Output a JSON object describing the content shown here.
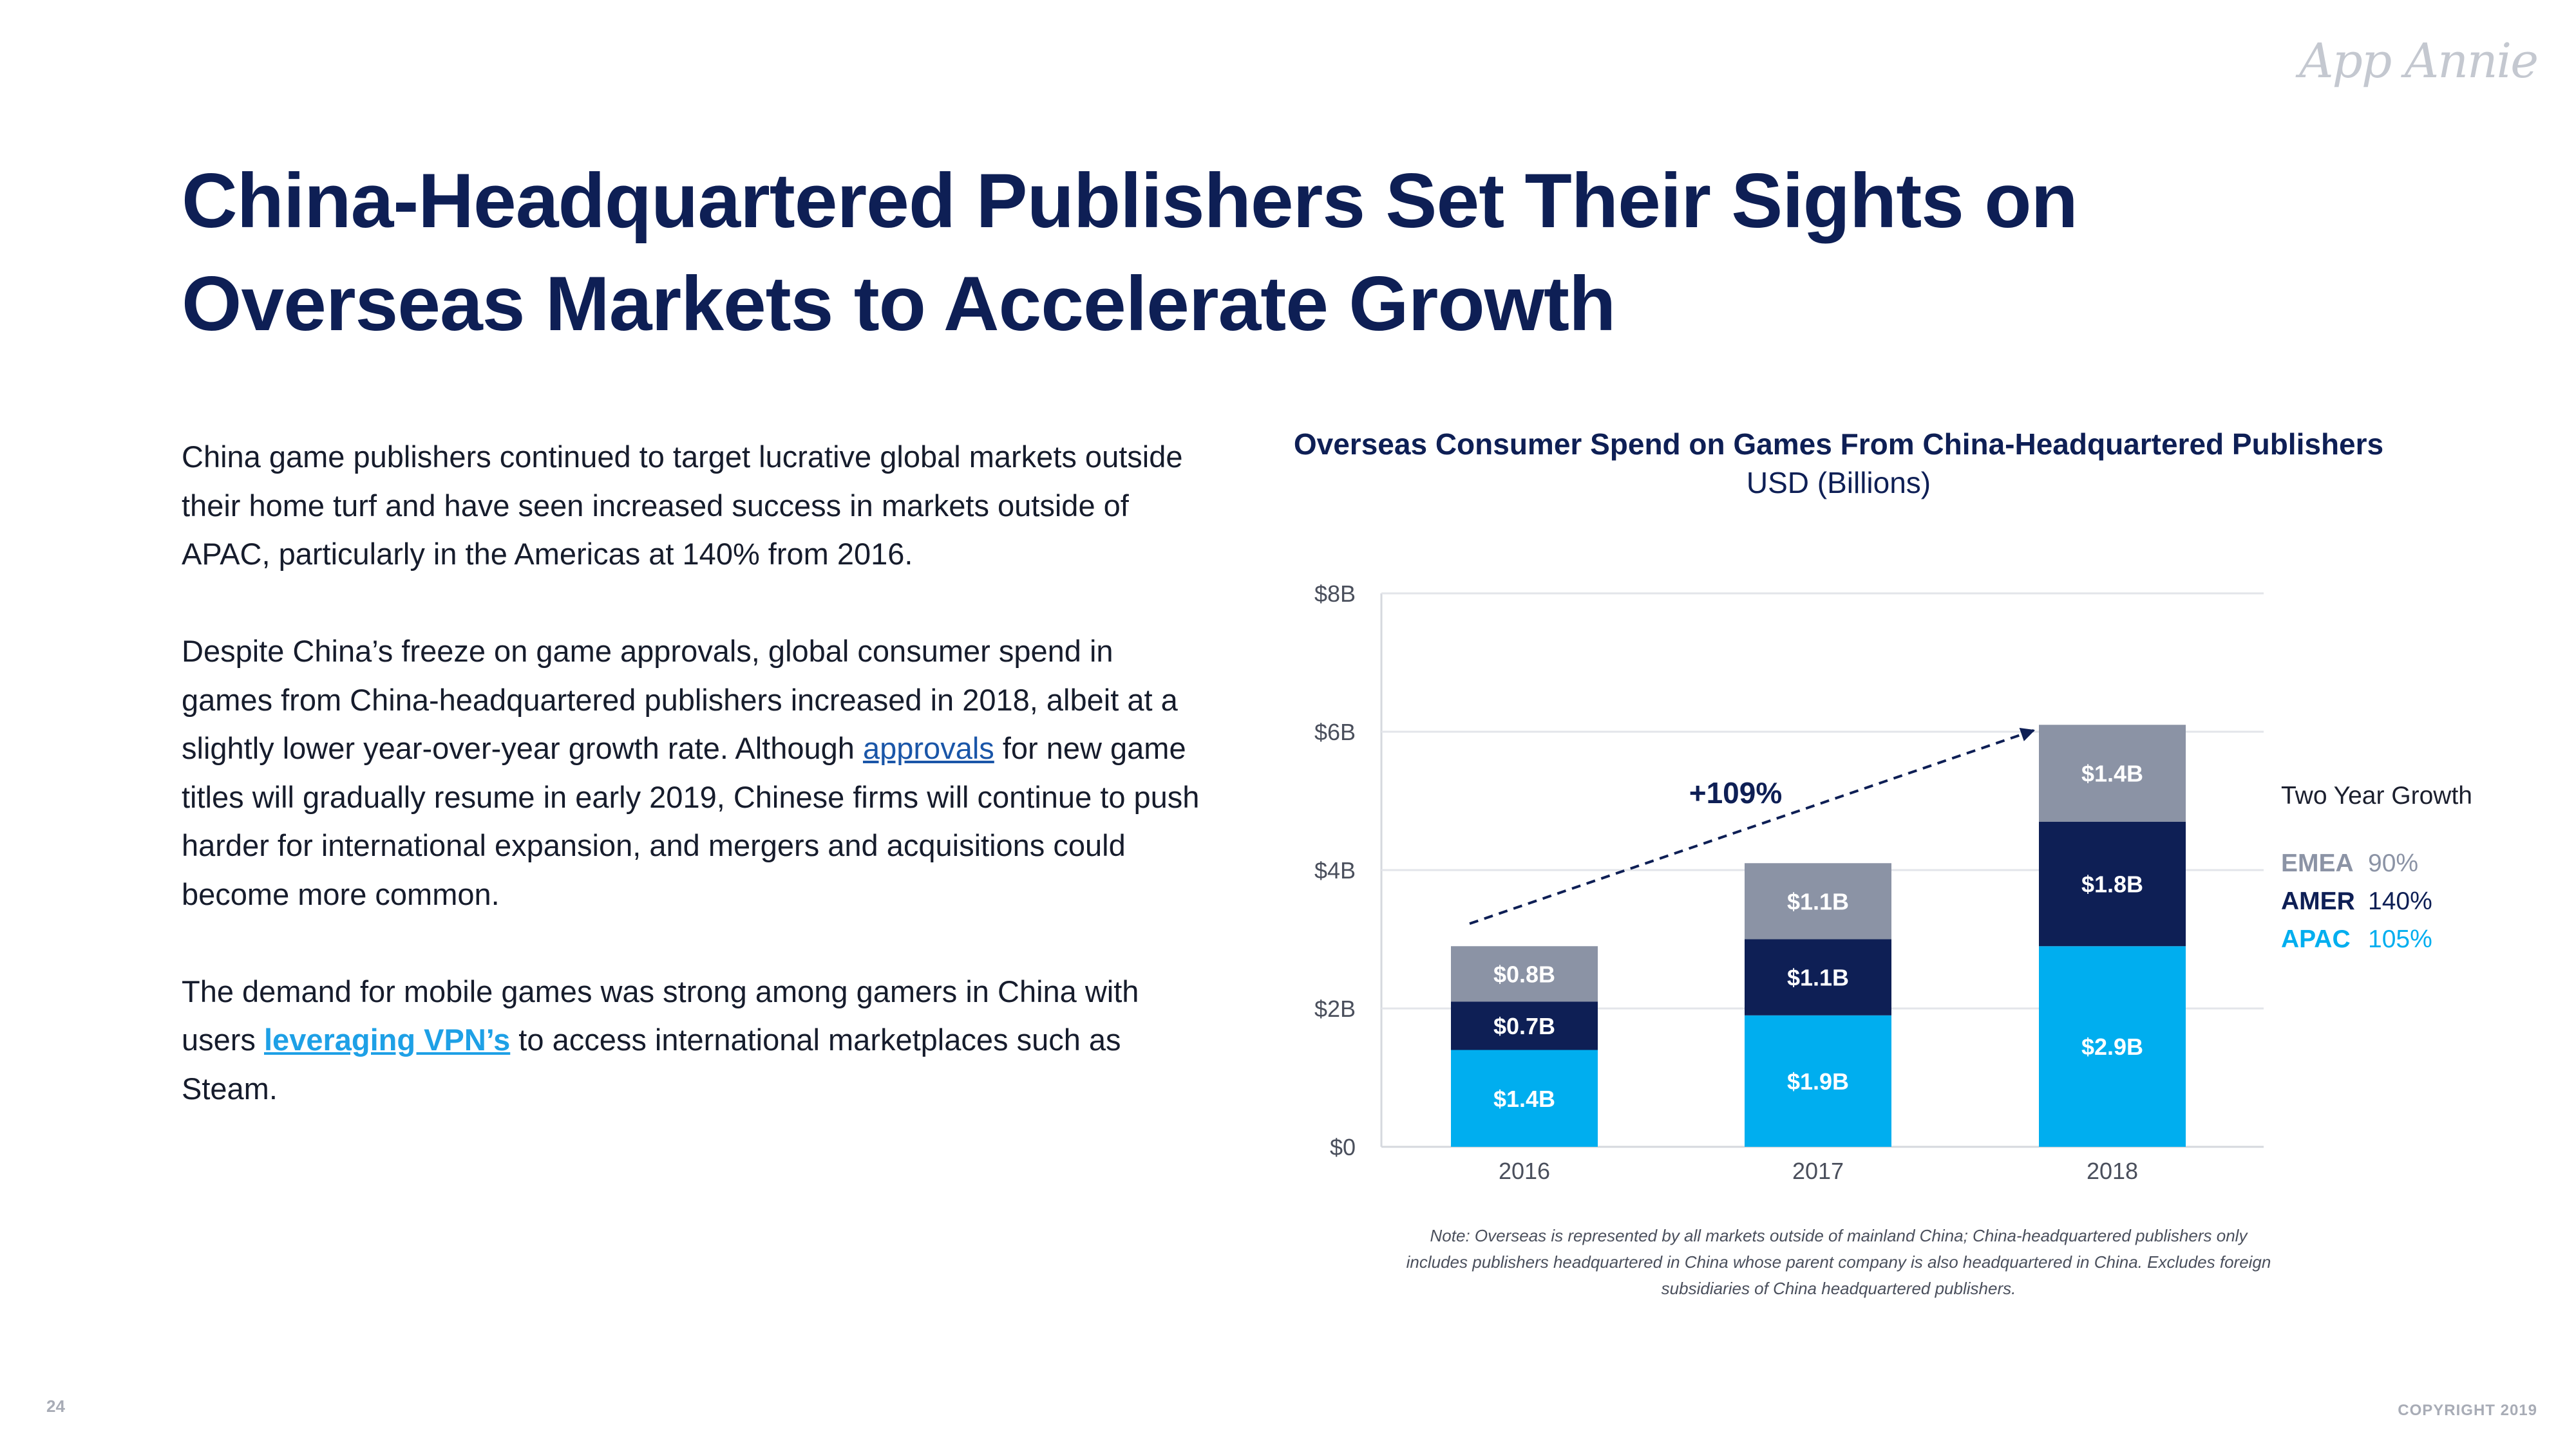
{
  "brand": {
    "logo_text": "App Annie"
  },
  "title": "China-Headquartered Publishers Set Their Sights on Overseas Markets to Accelerate Growth",
  "body": {
    "p1": "China game publishers continued to target lucrative global markets outside their home turf and have seen increased success in markets outside of APAC, particularly in the Americas at 140% from 2016.",
    "p2_before": "Despite China’s freeze on game approvals, global consumer spend in games from China-headquartered publishers increased in 2018, albeit at a slightly lower year-over-year growth rate. Although ",
    "p2_link": "approvals",
    "p2_after": " for new game titles will gradually resume in early 2019, Chinese firms will continue to push harder for international expansion, and mergers and acquisitions could become more common.",
    "p3_before": "The demand for mobile games was strong among gamers in China with users ",
    "p3_link": "leveraging VPN’s",
    "p3_after": " to access international marketplaces such as Steam."
  },
  "chart_data": {
    "type": "bar",
    "stacked": true,
    "title": "Overseas Consumer Spend on Games From China-Headquartered Publishers",
    "subtitle": "USD (Billions)",
    "categories": [
      "2016",
      "2017",
      "2018"
    ],
    "series": [
      {
        "name": "APAC",
        "values": [
          1.4,
          1.9,
          2.9
        ],
        "labels": [
          "$1.4B",
          "$1.9B",
          "$2.9B"
        ],
        "color": "#00aeef"
      },
      {
        "name": "AMER",
        "values": [
          0.7,
          1.1,
          1.8
        ],
        "labels": [
          "$0.7B",
          "$1.1B",
          "$1.8B"
        ],
        "color": "#0e1f55"
      },
      {
        "name": "EMEA",
        "values": [
          0.8,
          1.1,
          1.4
        ],
        "labels": [
          "$0.8B",
          "$1.1B",
          "$1.4B"
        ],
        "color": "#8b93a5"
      }
    ],
    "ylim": [
      0,
      8
    ],
    "yticks": [
      0,
      2,
      4,
      6,
      8
    ],
    "ytick_labels": [
      "$0",
      "$2B",
      "$4B",
      "$6B",
      "$8B"
    ],
    "annotation": "+109%",
    "legend_title": "Two Year Growth",
    "growth": [
      {
        "name": "EMEA",
        "value": "90%"
      },
      {
        "name": "AMER",
        "value": "140%"
      },
      {
        "name": "APAC",
        "value": "105%"
      }
    ]
  },
  "note": "Note: Overseas is represented by all markets outside of mainland China; China-headquartered publishers only includes publishers headquartered in China whose parent company is also headquartered in China. Excludes foreign subsidiaries of China headquartered publishers.",
  "footer": {
    "page_number": "24",
    "copyright": "COPYRIGHT 2019"
  },
  "colors": {
    "title": "#0e1f55",
    "accent_light": "#00aeef",
    "accent_dark": "#0e1f55",
    "gray": "#8b93a5"
  }
}
